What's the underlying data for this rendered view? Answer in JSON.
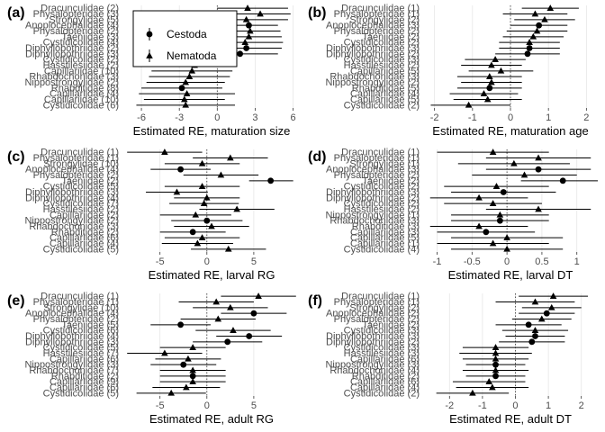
{
  "legend": {
    "entries": [
      {
        "label": "Cestoda",
        "marker": "circle"
      },
      {
        "label": "Nematoda",
        "marker": "triangle"
      }
    ],
    "placement": "top-right of panel (a)"
  },
  "chart_data": [
    {
      "panel": "(a)",
      "type": "forest",
      "xlabel": "Estimated RE, maturation size",
      "xlim": [
        -7.5,
        6.6
      ],
      "xticks": [
        -6,
        -3,
        0,
        3,
        6
      ],
      "zero_line": true,
      "categories": [
        "Dracunculidae (2)",
        "Physalopteridae (3)",
        "Strongylidae (5)",
        "Anoplocephalidae (4)",
        "Physalopteridae (2)",
        "Taeniidae (3)",
        "Cystidicolidae (4)",
        "Diphyllobothriidae (2)",
        "Diphyllobothriidae (3)",
        "Cystidicolidae (2)",
        "Hasstilesiidae (2)",
        "Capillariidae (10)",
        "Rhabdochonidae (3)",
        "Nippostrongylidae (2)",
        "Rhabditidae (8)",
        "Capillariidae (4)",
        "Capillariidae (10)",
        "Cystidicolidae (6)"
      ],
      "points": [
        {
          "y": 2.4,
          "lo": 0.0,
          "hi": 5.6,
          "group": "Nematoda"
        },
        {
          "y": 3.4,
          "lo": 1.0,
          "hi": 5.8,
          "group": "Nematoda"
        },
        {
          "y": 2.3,
          "lo": -1.0,
          "hi": 5.6,
          "group": "Nematoda"
        },
        {
          "y": 2.5,
          "lo": 0.2,
          "hi": 4.8,
          "group": "Cestoda"
        },
        {
          "y": 2.6,
          "lo": 0.2,
          "hi": 5.0,
          "group": "Nematoda"
        },
        {
          "y": 2.5,
          "lo": -0.1,
          "hi": 5.1,
          "group": "Nematoda"
        },
        {
          "y": 2.2,
          "lo": -0.8,
          "hi": 5.2,
          "group": "Nematoda"
        },
        {
          "y": 2.3,
          "lo": -0.5,
          "hi": 5.1,
          "group": "Cestoda"
        },
        {
          "y": 1.8,
          "lo": -1.2,
          "hi": 4.8,
          "group": "Cestoda"
        },
        {
          "y": -1.5,
          "lo": -4.5,
          "hi": 1.5,
          "group": "Nematoda"
        },
        {
          "y": -1.8,
          "lo": -5.0,
          "hi": 1.4,
          "group": "Nematoda"
        },
        {
          "y": -2.0,
          "lo": -5.2,
          "hi": 1.2,
          "group": "Nematoda"
        },
        {
          "y": -2.2,
          "lo": -5.4,
          "hi": 1.0,
          "group": "Nematoda"
        },
        {
          "y": -2.5,
          "lo": -5.6,
          "hi": 0.6,
          "group": "Nematoda"
        },
        {
          "y": -2.8,
          "lo": -6.0,
          "hi": 0.4,
          "group": "Cestoda"
        },
        {
          "y": -2.4,
          "lo": -6.2,
          "hi": 1.4,
          "group": "Nematoda"
        },
        {
          "y": -2.6,
          "lo": -5.8,
          "hi": 0.6,
          "group": "Nematoda"
        },
        {
          "y": -2.5,
          "lo": -6.4,
          "hi": 1.4,
          "group": "Nematoda"
        }
      ]
    },
    {
      "panel": "(b)",
      "type": "forest",
      "xlabel": "Estimated RE, maturation age",
      "xlim": [
        -2.3,
        2.3
      ],
      "xticks": [
        -2,
        -1,
        0,
        1,
        2
      ],
      "zero_line": true,
      "categories": [
        "Dracunculidae (1)",
        "Physalopteridae (1)",
        "Strongylidae (2)",
        "Anoplocephalidae (3)",
        "Physalopteridae (2)",
        "Taeniidae (2)",
        "Cystidicolidae (2)",
        "Diphyllobothriidae (3)",
        "Diphyllobothriidae (2)",
        "Cystidicolidae (3)",
        "Hasstilesiidae (2)",
        "Capillariidae (5)",
        "Rhabdochonidae (3)",
        "Nippostrongylidae (2)",
        "Rhabditidae (5)",
        "Capillariidae (4)",
        "Capillariidae (5)",
        "Cystidicolidae (2)"
      ],
      "points": [
        {
          "y": 1.05,
          "lo": 0.3,
          "hi": 1.8,
          "group": "Nematoda"
        },
        {
          "y": 0.65,
          "lo": -0.2,
          "hi": 1.5,
          "group": "Nematoda"
        },
        {
          "y": 0.9,
          "lo": 0.1,
          "hi": 1.7,
          "group": "Nematoda"
        },
        {
          "y": 0.75,
          "lo": 0.0,
          "hi": 1.5,
          "group": "Cestoda"
        },
        {
          "y": 0.7,
          "lo": -0.1,
          "hi": 1.5,
          "group": "Nematoda"
        },
        {
          "y": 0.6,
          "lo": -0.2,
          "hi": 1.4,
          "group": "Nematoda"
        },
        {
          "y": 0.5,
          "lo": -0.3,
          "hi": 1.3,
          "group": "Nematoda"
        },
        {
          "y": 0.5,
          "lo": -0.3,
          "hi": 1.3,
          "group": "Cestoda"
        },
        {
          "y": 0.45,
          "lo": -0.4,
          "hi": 1.3,
          "group": "Cestoda"
        },
        {
          "y": -0.4,
          "lo": -1.2,
          "hi": 0.4,
          "group": "Nematoda"
        },
        {
          "y": -0.5,
          "lo": -1.3,
          "hi": 0.3,
          "group": "Nematoda"
        },
        {
          "y": -0.25,
          "lo": -1.1,
          "hi": 0.6,
          "group": "Nematoda"
        },
        {
          "y": -0.55,
          "lo": -1.4,
          "hi": 0.3,
          "group": "Nematoda"
        },
        {
          "y": -0.5,
          "lo": -1.3,
          "hi": 0.3,
          "group": "Nematoda"
        },
        {
          "y": -0.55,
          "lo": -1.4,
          "hi": 0.3,
          "group": "Cestoda"
        },
        {
          "y": -0.7,
          "lo": -1.6,
          "hi": 0.2,
          "group": "Nematoda"
        },
        {
          "y": -0.6,
          "lo": -1.5,
          "hi": 0.3,
          "group": "Nematoda"
        },
        {
          "y": -1.1,
          "lo": -2.1,
          "hi": 0.0,
          "group": "Nematoda"
        }
      ]
    },
    {
      "panel": "(c)",
      "type": "forest",
      "xlabel": "Estimated RE, larval RG",
      "xlim": [
        -9,
        10
      ],
      "xticks": [
        -5,
        0,
        5
      ],
      "zero_line": true,
      "categories": [
        "Dracunculidae (1)",
        "Physalopteridae (1)",
        "Strongylidae (10)",
        "Anoplocephalidae (4)",
        "Physalopteridae (2)",
        "Taeniidae (2)",
        "Cystidicolidae (5)",
        "Diphyllobothriidae (3)",
        "Diphyllobothriidae (4)",
        "Cystidicolidae (7)",
        "Hasstilesiidae (2)",
        "Capillariidae (2)",
        "Nippostrongylidae (2)",
        "Rhabdochonidae (3)",
        "Rhabditidae (2)",
        "Capillariidae (6)",
        "Capillariidae (4)",
        "Cystidicolidae (5)"
      ],
      "points": [
        {
          "y": -4.5,
          "lo": -8.5,
          "hi": -0.5,
          "group": "Nematoda"
        },
        {
          "y": 2.5,
          "lo": -1.5,
          "hi": 6.5,
          "group": "Nematoda"
        },
        {
          "y": -0.5,
          "lo": -4.5,
          "hi": 3.5,
          "group": "Nematoda"
        },
        {
          "y": -2.8,
          "lo": -6.0,
          "hi": 0.4,
          "group": "Cestoda"
        },
        {
          "y": 1.5,
          "lo": -2.5,
          "hi": 5.5,
          "group": "Nematoda"
        },
        {
          "y": 6.8,
          "lo": 4.5,
          "hi": 9.2,
          "group": "Cestoda"
        },
        {
          "y": -0.5,
          "lo": -4.5,
          "hi": 3.5,
          "group": "Nematoda"
        },
        {
          "y": -3.2,
          "lo": -6.5,
          "hi": 0.1,
          "group": "Nematoda"
        },
        {
          "y": 0.0,
          "lo": -3.5,
          "hi": 3.5,
          "group": "Nematoda"
        },
        {
          "y": -0.3,
          "lo": -4.0,
          "hi": 3.4,
          "group": "Nematoda"
        },
        {
          "y": 3.2,
          "lo": -0.8,
          "hi": 7.2,
          "group": "Nematoda"
        },
        {
          "y": -1.2,
          "lo": -5.0,
          "hi": 2.6,
          "group": "Nematoda"
        },
        {
          "y": 0.0,
          "lo": -3.8,
          "hi": 3.8,
          "group": "Cestoda"
        },
        {
          "y": 0.5,
          "lo": -3.5,
          "hi": 4.5,
          "group": "Nematoda"
        },
        {
          "y": -1.5,
          "lo": -5.0,
          "hi": 2.0,
          "group": "Cestoda"
        },
        {
          "y": -0.5,
          "lo": -4.5,
          "hi": 3.5,
          "group": "Nematoda"
        },
        {
          "y": -1.0,
          "lo": -4.8,
          "hi": 2.8,
          "group": "Nematoda"
        },
        {
          "y": 2.3,
          "lo": -1.7,
          "hi": 6.3,
          "group": "Nematoda"
        }
      ]
    },
    {
      "panel": "(d)",
      "type": "forest",
      "xlabel": "Estimated RE, larval DT",
      "xlim": [
        -1.2,
        1.3
      ],
      "xticks": [
        -1.0,
        -0.5,
        0.0,
        0.5,
        1.0
      ],
      "zero_line": true,
      "categories": [
        "Dracunculidae (1)",
        "Physalopteridae (1)",
        "Strongylidae (1)",
        "Anoplocephalidae (3)",
        "Physalopteridae (2)",
        "Taeniidae (2)",
        "Cystidicolidae (2)",
        "Diphyllobothriidae (3)",
        "Diphyllobothriidae (2)",
        "Cystidicolidae (2)",
        "Hasstilesiidae (2)",
        "Nippostrongylidae (1)",
        "Rhabdochonidae (3)",
        "Rhabditidae (3)",
        "Capillariidae (3)",
        "Capillariidae (5)",
        "Capillariidae (1)",
        "Cystidicolidae (4)"
      ],
      "points": [
        {
          "y": -0.2,
          "lo": -1.0,
          "hi": 0.6,
          "group": "Nematoda"
        },
        {
          "y": 0.45,
          "lo": -0.3,
          "hi": 1.2,
          "group": "Nematoda"
        },
        {
          "y": 0.1,
          "lo": -0.7,
          "hi": 0.9,
          "group": "Nematoda"
        },
        {
          "y": 0.45,
          "lo": -0.3,
          "hi": 1.2,
          "group": "Cestoda"
        },
        {
          "y": 0.25,
          "lo": -0.5,
          "hi": 1.0,
          "group": "Nematoda"
        },
        {
          "y": 0.8,
          "lo": 0.2,
          "hi": 1.3,
          "group": "Cestoda"
        },
        {
          "y": -0.15,
          "lo": -0.9,
          "hi": 0.6,
          "group": "Nematoda"
        },
        {
          "y": -0.05,
          "lo": -0.8,
          "hi": 0.7,
          "group": "Cestoda"
        },
        {
          "y": -0.4,
          "lo": -1.1,
          "hi": 0.3,
          "group": "Nematoda"
        },
        {
          "y": -0.2,
          "lo": -0.9,
          "hi": 0.5,
          "group": "Nematoda"
        },
        {
          "y": 0.45,
          "lo": -0.3,
          "hi": 1.2,
          "group": "Nematoda"
        },
        {
          "y": -0.1,
          "lo": -0.8,
          "hi": 0.6,
          "group": "Nematoda"
        },
        {
          "y": -0.1,
          "lo": -0.8,
          "hi": 0.6,
          "group": "Cestoda"
        },
        {
          "y": -0.4,
          "lo": -1.1,
          "hi": 0.3,
          "group": "Nematoda"
        },
        {
          "y": -0.3,
          "lo": -1.0,
          "hi": 0.4,
          "group": "Cestoda"
        },
        {
          "y": 0.0,
          "lo": -0.8,
          "hi": 0.8,
          "group": "Nematoda"
        },
        {
          "y": -0.2,
          "lo": -1.0,
          "hi": 0.6,
          "group": "Nematoda"
        },
        {
          "y": 0.0,
          "lo": -0.8,
          "hi": 0.8,
          "group": "Nematoda"
        }
      ]
    },
    {
      "panel": "(e)",
      "type": "forest",
      "xlabel": "Estimated RE, adult RG",
      "xlim": [
        -9,
        10
      ],
      "xticks": [
        -5,
        0,
        5
      ],
      "zero_line": true,
      "categories": [
        "Dracunculidae (1)",
        "Physalopteridae (1)",
        "Strongylidae (10)",
        "Anoplocephalidae (4)",
        "Physalopteridae (2)",
        "Taeniidae (5)",
        "Cystidicolidae (6)",
        "Diphyllobothriidae (4)",
        "Diphyllobothriidae (3)",
        "Cystidicolidae (5)",
        "Hasstilesiidae (7)",
        "Capillariidae (6)",
        "Nippostrongylidae (3)",
        "Rhabdochonidae (7)",
        "Rhabditidae (2)",
        "Capillariidae (9)",
        "Capillariidae (6)",
        "Cystidicolidae (5)"
      ],
      "points": [
        {
          "y": 5.5,
          "lo": 1.5,
          "hi": 9.5,
          "group": "Nematoda"
        },
        {
          "y": 1.0,
          "lo": -3.0,
          "hi": 5.0,
          "group": "Nematoda"
        },
        {
          "y": 2.5,
          "lo": -1.5,
          "hi": 6.5,
          "group": "Nematoda"
        },
        {
          "y": 5.0,
          "lo": 1.5,
          "hi": 8.5,
          "group": "Cestoda"
        },
        {
          "y": 1.2,
          "lo": -2.8,
          "hi": 5.2,
          "group": "Nematoda"
        },
        {
          "y": -2.8,
          "lo": -6.0,
          "hi": 0.4,
          "group": "Cestoda"
        },
        {
          "y": 2.8,
          "lo": -1.2,
          "hi": 6.8,
          "group": "Nematoda"
        },
        {
          "y": 4.5,
          "lo": 1.0,
          "hi": 8.0,
          "group": "Cestoda"
        },
        {
          "y": 2.2,
          "lo": -1.5,
          "hi": 5.9,
          "group": "Cestoda"
        },
        {
          "y": -1.5,
          "lo": -5.0,
          "hi": 2.0,
          "group": "Nematoda"
        },
        {
          "y": -4.5,
          "lo": -8.5,
          "hi": -0.5,
          "group": "Nematoda"
        },
        {
          "y": -2.0,
          "lo": -5.5,
          "hi": 1.5,
          "group": "Nematoda"
        },
        {
          "y": -2.5,
          "lo": -6.0,
          "hi": 1.0,
          "group": "Cestoda"
        },
        {
          "y": -1.5,
          "lo": -5.0,
          "hi": 2.0,
          "group": "Nematoda"
        },
        {
          "y": -1.5,
          "lo": -5.0,
          "hi": 2.0,
          "group": "Cestoda"
        },
        {
          "y": -1.5,
          "lo": -5.0,
          "hi": 2.0,
          "group": "Nematoda"
        },
        {
          "y": -2.2,
          "lo": -5.8,
          "hi": 1.4,
          "group": "Nematoda"
        },
        {
          "y": -3.8,
          "lo": -7.5,
          "hi": -0.1,
          "group": "Nematoda"
        }
      ]
    },
    {
      "panel": "(f)",
      "type": "forest",
      "xlabel": "Estimated RE, adult DT",
      "xlim": [
        -2.8,
        2.5
      ],
      "xticks": [
        -2,
        -1,
        0,
        1,
        2
      ],
      "zero_line": true,
      "categories": [
        "Dracunculidae (1)",
        "Physalopteridae (1)",
        "Strongylidae (2)",
        "Anoplocephalidae (2)",
        "Physalopteridae (2)",
        "Taeniidae (2)",
        "Cystidicolidae (3)",
        "Diphyllobothriidae (3)",
        "Diphyllobothriidae (2)",
        "Cystidicolidae (3)",
        "Hasstilesiidae (3)",
        "Capillariidae (6)",
        "Nippostrongylidae (3)",
        "Rhabdochonidae (4)",
        "Rhabditidae (2)",
        "Capillariidae (6)",
        "Capillariidae (4)",
        "Cystidicolidae (2)"
      ],
      "points": [
        {
          "y": 1.15,
          "lo": 0.1,
          "hi": 2.2,
          "group": "Nematoda"
        },
        {
          "y": 0.6,
          "lo": -0.6,
          "hi": 1.8,
          "group": "Nematoda"
        },
        {
          "y": 1.1,
          "lo": 0.2,
          "hi": 2.0,
          "group": "Nematoda"
        },
        {
          "y": 0.95,
          "lo": 0.1,
          "hi": 1.8,
          "group": "Cestoda"
        },
        {
          "y": 0.8,
          "lo": -0.1,
          "hi": 1.7,
          "group": "Nematoda"
        },
        {
          "y": 0.4,
          "lo": -0.6,
          "hi": 1.4,
          "group": "Cestoda"
        },
        {
          "y": 0.6,
          "lo": -0.4,
          "hi": 1.6,
          "group": "Nematoda"
        },
        {
          "y": 0.6,
          "lo": -0.3,
          "hi": 1.5,
          "group": "Cestoda"
        },
        {
          "y": 0.5,
          "lo": -0.5,
          "hi": 1.5,
          "group": "Cestoda"
        },
        {
          "y": -0.6,
          "lo": -1.6,
          "hi": 0.4,
          "group": "Nematoda"
        },
        {
          "y": -0.6,
          "lo": -1.7,
          "hi": 0.5,
          "group": "Nematoda"
        },
        {
          "y": -0.6,
          "lo": -1.6,
          "hi": 0.4,
          "group": "Nematoda"
        },
        {
          "y": -0.6,
          "lo": -1.5,
          "hi": 0.3,
          "group": "Cestoda"
        },
        {
          "y": -0.6,
          "lo": -1.6,
          "hi": 0.4,
          "group": "Nematoda"
        },
        {
          "y": -0.6,
          "lo": -1.5,
          "hi": 0.3,
          "group": "Cestoda"
        },
        {
          "y": -0.8,
          "lo": -1.9,
          "hi": 0.3,
          "group": "Nematoda"
        },
        {
          "y": -0.7,
          "lo": -1.8,
          "hi": 0.4,
          "group": "Nematoda"
        },
        {
          "y": -1.3,
          "lo": -2.4,
          "hi": -0.2,
          "group": "Nematoda"
        }
      ]
    }
  ]
}
